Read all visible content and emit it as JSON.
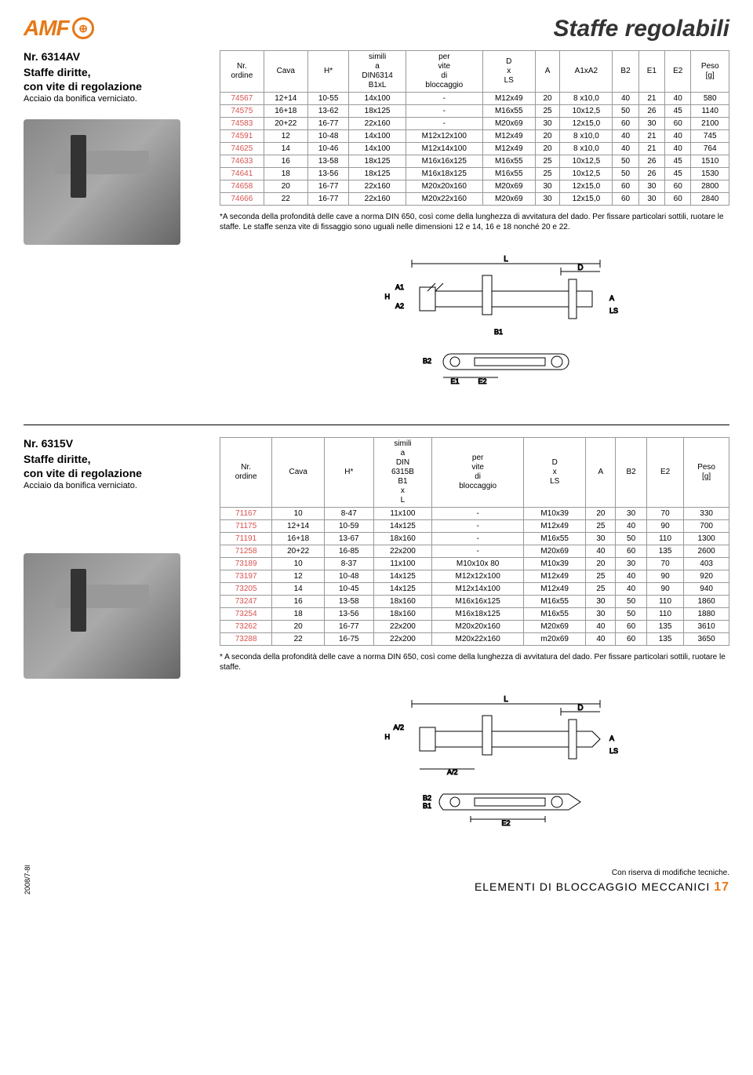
{
  "logo_text": "AMF",
  "page_title": "Staffe regolabili",
  "product1": {
    "code": "Nr. 6314AV",
    "title1": "Staffe diritte,",
    "title2": "con vite di regolazione",
    "sub": "Acciaio da bonifica verniciato."
  },
  "table1": {
    "headers": [
      "Nr. ordine",
      "Cava",
      "H*",
      "simili a DIN6314 B1xL",
      "per vite di bloccaggio",
      "D x LS",
      "A",
      "A1xA2",
      "B2",
      "E1",
      "E2",
      "Peso [g]"
    ],
    "rows": [
      [
        "74567",
        "12+14",
        "10-55",
        "14x100",
        "-",
        "M12x49",
        "20",
        "8 x10,0",
        "40",
        "21",
        "40",
        "580"
      ],
      [
        "74575",
        "16+18",
        "13-62",
        "18x125",
        "-",
        "M16x55",
        "25",
        "10x12,5",
        "50",
        "26",
        "45",
        "1140"
      ],
      [
        "74583",
        "20+22",
        "16-77",
        "22x160",
        "-",
        "M20x69",
        "30",
        "12x15,0",
        "60",
        "30",
        "60",
        "2100"
      ],
      [
        "74591",
        "12",
        "10-48",
        "14x100",
        "M12x12x100",
        "M12x49",
        "20",
        "8 x10,0",
        "40",
        "21",
        "40",
        "745"
      ],
      [
        "74625",
        "14",
        "10-46",
        "14x100",
        "M12x14x100",
        "M12x49",
        "20",
        "8 x10,0",
        "40",
        "21",
        "40",
        "764"
      ],
      [
        "74633",
        "16",
        "13-58",
        "18x125",
        "M16x16x125",
        "M16x55",
        "25",
        "10x12,5",
        "50",
        "26",
        "45",
        "1510"
      ],
      [
        "74641",
        "18",
        "13-56",
        "18x125",
        "M16x18x125",
        "M16x55",
        "25",
        "10x12,5",
        "50",
        "26",
        "45",
        "1530"
      ],
      [
        "74658",
        "20",
        "16-77",
        "22x160",
        "M20x20x160",
        "M20x69",
        "30",
        "12x15,0",
        "60",
        "30",
        "60",
        "2800"
      ],
      [
        "74666",
        "22",
        "16-77",
        "22x160",
        "M20x22x160",
        "M20x69",
        "30",
        "12x15,0",
        "60",
        "30",
        "60",
        "2840"
      ]
    ],
    "note": "*A seconda della profondità delle cave a norma DIN 650, così come della lunghezza di avvitatura del dado. Per fissare particolari sottili, ruotare le staffe. Le staffe senza vite di fissaggio sono uguali nelle dimensioni 12 e 14, 16 e 18 nonché 20 e 22."
  },
  "product2": {
    "code": "Nr. 6315V",
    "title1": "Staffe diritte,",
    "title2": "con vite di regolazione",
    "sub": "Acciaio da bonifica verniciato."
  },
  "table2": {
    "headers": [
      "Nr. ordine",
      "Cava",
      "H*",
      "simili a DIN 6315B B1 x L",
      "per vite di bloccaggio",
      "D x LS",
      "A",
      "B2",
      "E2",
      "Peso [g]"
    ],
    "rows": [
      [
        "71167",
        "10",
        "8-47",
        "11x100",
        "-",
        "M10x39",
        "20",
        "30",
        "70",
        "330"
      ],
      [
        "71175",
        "12+14",
        "10-59",
        "14x125",
        "-",
        "M12x49",
        "25",
        "40",
        "90",
        "700"
      ],
      [
        "71191",
        "16+18",
        "13-67",
        "18x160",
        "-",
        "M16x55",
        "30",
        "50",
        "110",
        "1300"
      ],
      [
        "71258",
        "20+22",
        "16-85",
        "22x200",
        "-",
        "M20x69",
        "40",
        "60",
        "135",
        "2600"
      ],
      [
        "73189",
        "10",
        "8-37",
        "11x100",
        "M10x10x 80",
        "M10x39",
        "20",
        "30",
        "70",
        "403"
      ],
      [
        "73197",
        "12",
        "10-48",
        "14x125",
        "M12x12x100",
        "M12x49",
        "25",
        "40",
        "90",
        "920"
      ],
      [
        "73205",
        "14",
        "10-45",
        "14x125",
        "M12x14x100",
        "M12x49",
        "25",
        "40",
        "90",
        "940"
      ],
      [
        "73247",
        "16",
        "13-58",
        "18x160",
        "M16x16x125",
        "M16x55",
        "30",
        "50",
        "110",
        "1860"
      ],
      [
        "73254",
        "18",
        "13-56",
        "18x160",
        "M16x18x125",
        "M16x55",
        "30",
        "50",
        "110",
        "1880"
      ],
      [
        "73262",
        "20",
        "16-77",
        "22x200",
        "M20x20x160",
        "M20x69",
        "40",
        "60",
        "135",
        "3610"
      ],
      [
        "73288",
        "22",
        "16-75",
        "22x200",
        "M20x22x160",
        "m20x69",
        "40",
        "60",
        "135",
        "3650"
      ]
    ],
    "note": "* A seconda della profondità delle cave a norma DIN 650, così come della lunghezza di avvitatura del dado. Per fissare particolari sottili, ruotare le staffe."
  },
  "footer": {
    "code": "2008/7-8I",
    "disclaimer": "Con riserva di modifiche tecniche.",
    "title": "ELEMENTI DI BLOCCAGGIO MECCANICI",
    "page": "17"
  },
  "dim_labels": {
    "L": "L",
    "D": "D",
    "A": "A",
    "A1": "A1",
    "A2": "A2",
    "H": "H",
    "LS": "LS",
    "B1": "B1",
    "B2": "B2",
    "E1": "E1",
    "E2": "E2",
    "Ahalf": "A/2"
  }
}
